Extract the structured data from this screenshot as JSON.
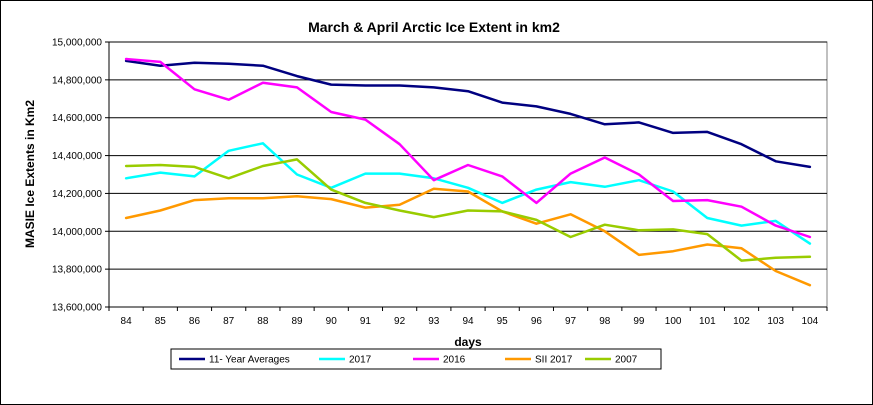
{
  "chart_data": {
    "type": "line",
    "title": "March & April Arctic Ice Extent in km2",
    "xlabel": "days",
    "ylabel": "MASIE Ice Extents in Km2",
    "ylim": [
      13600000,
      15000000
    ],
    "y_ticks": [
      13600000,
      13800000,
      14000000,
      14200000,
      14400000,
      14600000,
      14800000,
      15000000
    ],
    "y_tick_labels": [
      "13,600,000",
      "13,800,000",
      "14,000,000",
      "14,200,000",
      "14,400,000",
      "14,600,000",
      "14,800,000",
      "15,000,000"
    ],
    "grid": true,
    "legend_position": "bottom",
    "categories": [
      "84",
      "85",
      "86",
      "87",
      "88",
      "89",
      "90",
      "91",
      "92",
      "93",
      "94",
      "95",
      "96",
      "97",
      "98",
      "99",
      "100",
      "101",
      "102",
      "103",
      "104"
    ],
    "series": [
      {
        "name": "11- Year Averages",
        "color": "#000080",
        "values": [
          14900000,
          14875000,
          14890000,
          14885000,
          14875000,
          14820000,
          14775000,
          14770000,
          14770000,
          14760000,
          14740000,
          14680000,
          14660000,
          14620000,
          14565000,
          14575000,
          14520000,
          14525000,
          14460000,
          14370000,
          14340000
        ]
      },
      {
        "name": "2017",
        "color": "#00FFFF",
        "values": [
          14280000,
          14310000,
          14290000,
          14425000,
          14465000,
          14300000,
          14230000,
          14305000,
          14305000,
          14280000,
          14230000,
          14150000,
          14220000,
          14260000,
          14235000,
          14270000,
          14210000,
          14070000,
          14030000,
          14055000,
          13935000
        ]
      },
      {
        "name": "2016",
        "color": "#FF00FF",
        "values": [
          14910000,
          14895000,
          14750000,
          14695000,
          14785000,
          14760000,
          14630000,
          14590000,
          14460000,
          14270000,
          14350000,
          14290000,
          14150000,
          14305000,
          14390000,
          14300000,
          14160000,
          14165000,
          14130000,
          14030000,
          13970000
        ]
      },
      {
        "name": "SII 2017",
        "color": "#FF9900",
        "values": [
          14070000,
          14110000,
          14165000,
          14175000,
          14175000,
          14185000,
          14170000,
          14125000,
          14140000,
          14225000,
          14210000,
          14105000,
          14040000,
          14090000,
          14000000,
          13875000,
          13895000,
          13930000,
          13910000,
          13790000,
          13715000
        ]
      },
      {
        "name": "2007",
        "color": "#99CC00",
        "values": [
          14345000,
          14350000,
          14340000,
          14280000,
          14345000,
          14380000,
          14220000,
          14150000,
          14110000,
          14075000,
          14110000,
          14105000,
          14060000,
          13970000,
          14035000,
          14005000,
          14010000,
          13985000,
          13845000,
          13860000,
          13865000
        ]
      }
    ]
  }
}
